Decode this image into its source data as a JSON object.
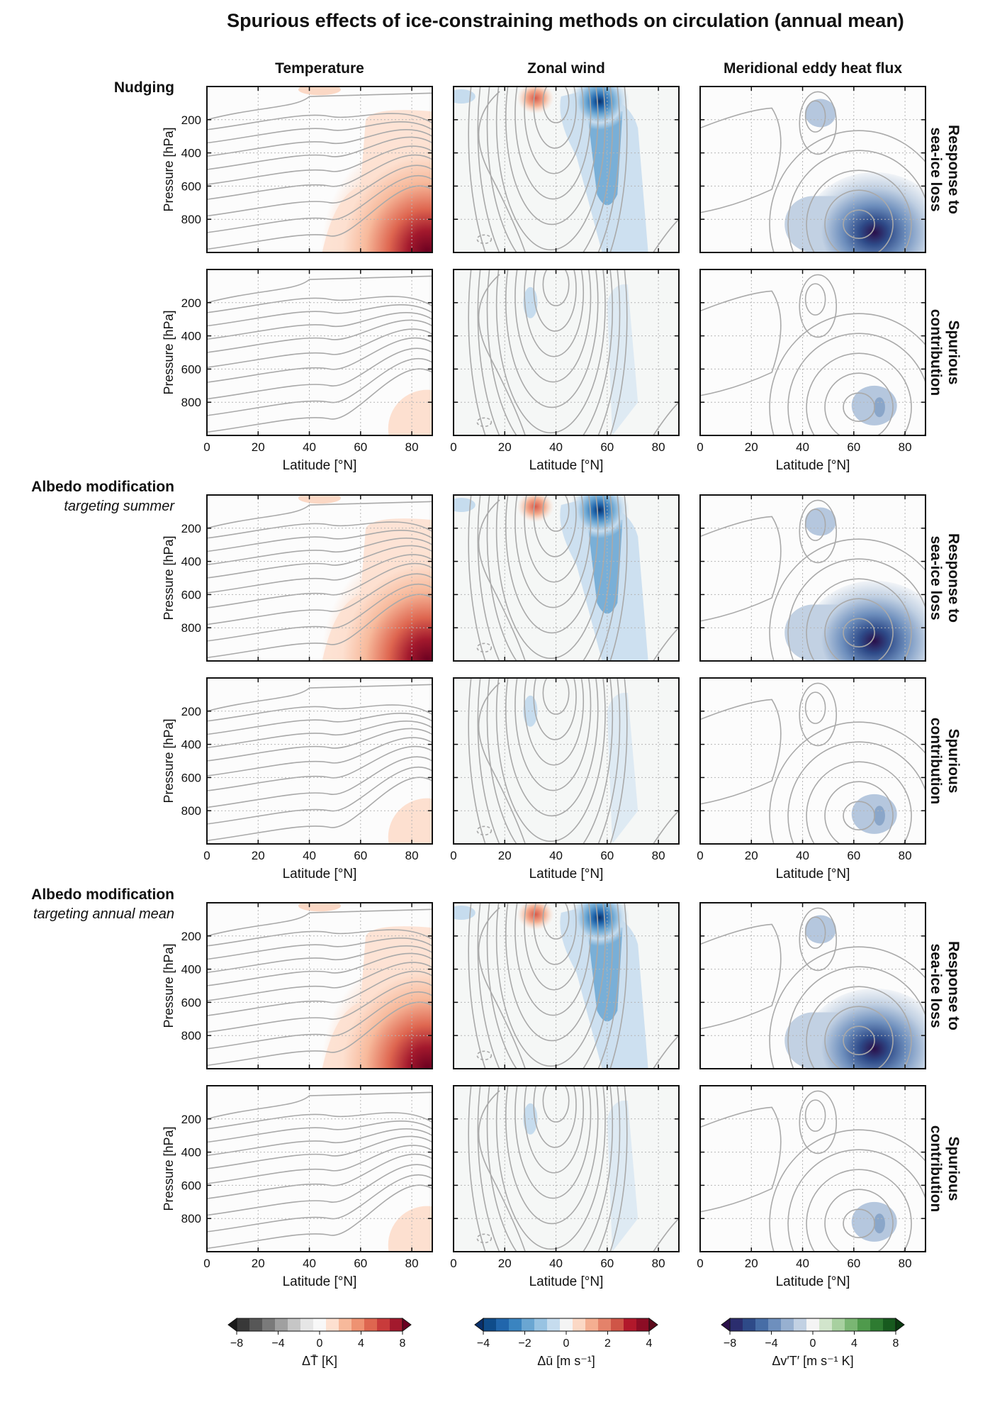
{
  "title": "Spurious effects of ice-constraining methods on circulation (annual mean)",
  "columns": [
    "Temperature",
    "Zonal wind",
    "Meridional eddy heat flux"
  ],
  "groups": [
    {
      "name": "Nudging",
      "subname": ""
    },
    {
      "name": "Albedo modification",
      "subname": "targeting summer"
    },
    {
      "name": "Albedo modification",
      "subname": "targeting annual mean"
    }
  ],
  "row_labels": {
    "response": [
      "Response to",
      "sea-ice loss"
    ],
    "spurious": [
      "Spurious",
      "contribution"
    ]
  },
  "colorbars": [
    {
      "ticks": [
        "−8",
        "−4",
        "0",
        "4",
        "8"
      ],
      "label": "ΔT̄  [K]",
      "colors": [
        "#1a1a1a",
        "#383838",
        "#575757",
        "#7a7a7a",
        "#a0a0a0",
        "#c6c6c6",
        "#e6e6e6",
        "#f8f8f8",
        "#fde0d0",
        "#f7b99b",
        "#ee9272",
        "#de6650",
        "#c83b3b",
        "#a3192d",
        "#6a0020"
      ]
    },
    {
      "ticks": [
        "−4",
        "−2",
        "0",
        "2",
        "4"
      ],
      "label": "Δū  [m s⁻¹]",
      "colors": [
        "#08306b",
        "#0f4c8a",
        "#2166ac",
        "#3a84c0",
        "#6aa6d2",
        "#98c3e2",
        "#c6dcee",
        "#f4f4f4",
        "#fbd8c5",
        "#f4ae91",
        "#e4826a",
        "#cf5547",
        "#b2182b",
        "#8c0d25",
        "#5c0b1c"
      ]
    },
    {
      "ticks": [
        "−8",
        "−4",
        "0",
        "4",
        "8"
      ],
      "label": "Δv′T′  [m s⁻¹ K]",
      "colors": [
        "#2a0f4a",
        "#2b2d6e",
        "#2e4a88",
        "#476da6",
        "#6e8fbd",
        "#97b0d0",
        "#c2d1e3",
        "#f4f4f4",
        "#d2e5cc",
        "#a8d0a0",
        "#7ab673",
        "#4f9a4c",
        "#2e7b31",
        "#175a1e",
        "#0a3a10"
      ]
    }
  ],
  "chart_data": {
    "type": "contour",
    "panel_grid": {
      "rows": 6,
      "cols": 3
    },
    "xlim": [
      0,
      88
    ],
    "ylim": [
      1000,
      0
    ],
    "xticks": [
      0,
      20,
      40,
      60,
      80
    ],
    "yticks": [
      200,
      400,
      600,
      800
    ],
    "xlabel": "Latitude  [°N]",
    "ylabel": "Pressure  [hPa]",
    "features": {
      "temperature_response": [
        {
          "lat": 86,
          "p": 970,
          "value": 7.5
        },
        {
          "lat": 60,
          "p": 150,
          "value": 0.8
        }
      ],
      "temperature_spurious": [
        {
          "lat": 82,
          "p": 920,
          "value": 0.8
        }
      ],
      "zonal_wind_response": [
        {
          "lat": 55,
          "p": 80,
          "value": -3.5
        },
        {
          "lat": 60,
          "p": 700,
          "value": -1.5
        },
        {
          "lat": 30,
          "p": 60,
          "value": 1.5
        }
      ],
      "zonal_wind_spurious": [
        {
          "lat": 65,
          "p": 550,
          "value": -0.4
        }
      ],
      "heat_flux_response": [
        {
          "lat": 68,
          "p": 870,
          "value": -8
        },
        {
          "lat": 48,
          "p": 160,
          "value": -2
        }
      ],
      "heat_flux_spurious": [
        {
          "lat": 68,
          "p": 820,
          "value": -2
        }
      ]
    }
  }
}
